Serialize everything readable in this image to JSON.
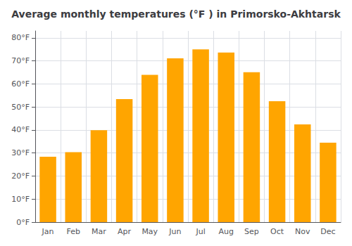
{
  "chart_data": {
    "type": "bar",
    "title": "Average monthly temperatures (°F ) in Primorsko-Akhtarsk",
    "categories": [
      "Jan",
      "Feb",
      "Mar",
      "Apr",
      "May",
      "Jun",
      "Jul",
      "Aug",
      "Sep",
      "Oct",
      "Nov",
      "Dec"
    ],
    "values": [
      28.4,
      30.4,
      39.9,
      53.4,
      63.9,
      71.1,
      75.0,
      73.6,
      65.1,
      52.5,
      42.4,
      34.5
    ],
    "color": "#FFA500",
    "ylim": [
      0,
      83
    ],
    "yticks": [
      {
        "value": 0,
        "label": "0°F"
      },
      {
        "value": 10,
        "label": "10°F"
      },
      {
        "value": 20,
        "label": "20°F"
      },
      {
        "value": 30,
        "label": "30°F"
      },
      {
        "value": 40,
        "label": "40°F"
      },
      {
        "value": 50,
        "label": "50°F"
      },
      {
        "value": 60,
        "label": "60°F"
      },
      {
        "value": 70,
        "label": "70°F"
      },
      {
        "value": 80,
        "label": "80°F"
      }
    ],
    "grid": true
  }
}
